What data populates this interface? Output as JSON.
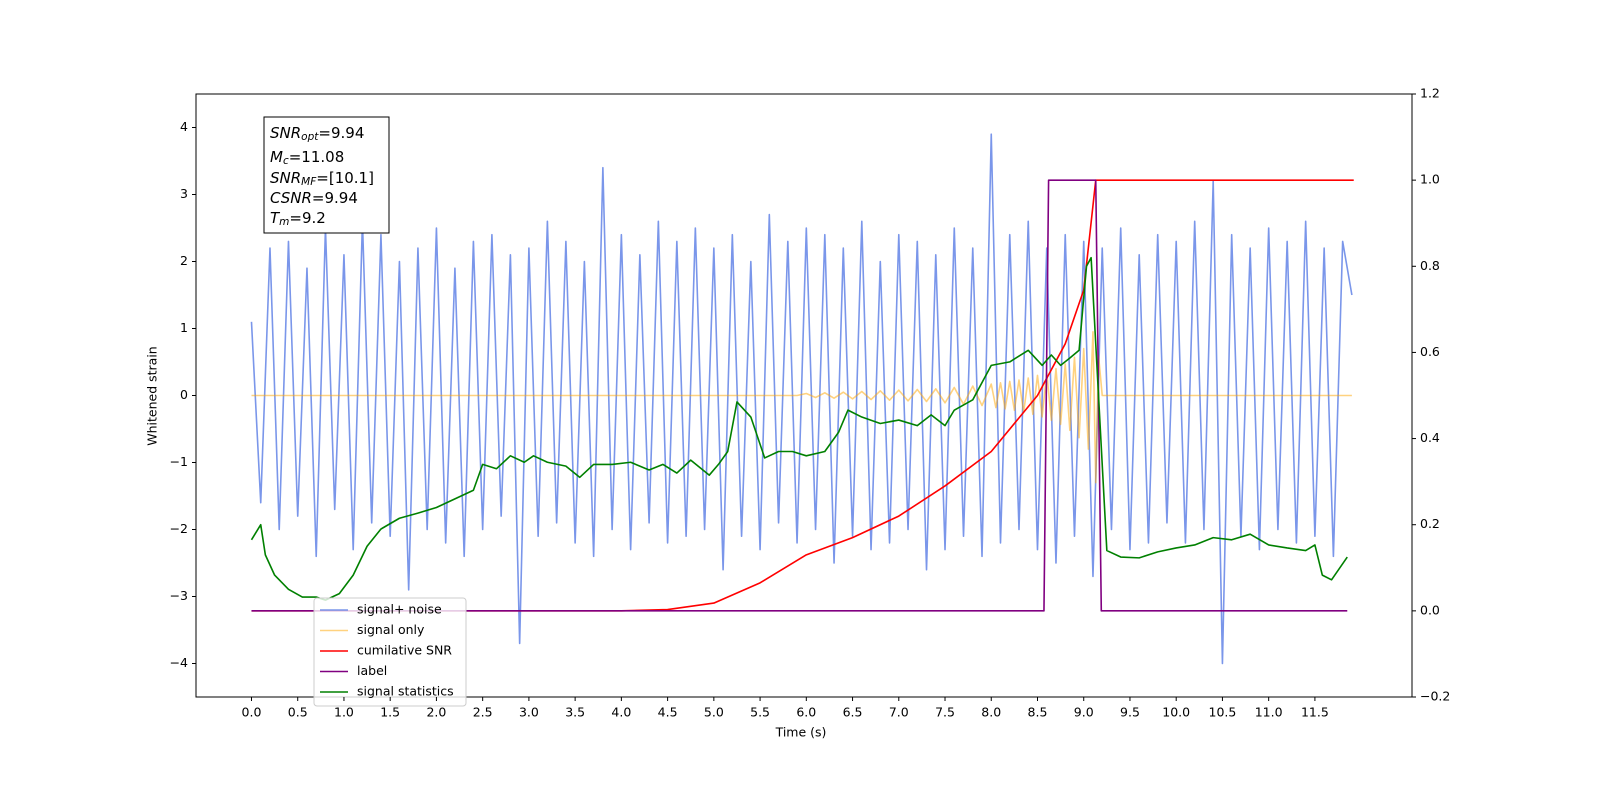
{
  "chart_data": {
    "type": "line",
    "xlabel": "Time (s)",
    "ylabel": "Whitened strain",
    "xlim": [
      -0.6,
      12.55
    ],
    "xticks": [
      {
        "value": 0,
        "label": "0.0"
      },
      0.5,
      {
        "value": 1,
        "label": "1.0"
      },
      1.5,
      {
        "value": 2,
        "label": "2.0"
      },
      2.5,
      {
        "value": 3,
        "label": "3.0"
      },
      3.5,
      {
        "value": 4,
        "label": "4.0"
      },
      4.5,
      {
        "value": 5,
        "label": "5.0"
      },
      5.5,
      {
        "value": 6,
        "label": "6.0"
      },
      6.5,
      {
        "value": 7,
        "label": "7.0"
      },
      7.5,
      {
        "value": 8,
        "label": "8.0"
      },
      8.5,
      {
        "value": 9,
        "label": "9.0"
      },
      9.5,
      {
        "value": 10,
        "label": "10.0"
      },
      10.5,
      {
        "value": 11,
        "label": "11.0"
      },
      11.5
    ],
    "ylim": [
      -4.5,
      4.5
    ],
    "yticks": [
      {
        "value": -4,
        "label": "−4"
      },
      {
        "value": -3,
        "label": "−3"
      },
      {
        "value": -2,
        "label": "−2"
      },
      {
        "value": -1,
        "label": "−1"
      },
      0,
      1,
      2,
      3,
      4
    ],
    "y2lim": [
      -0.2,
      1.2
    ],
    "y2ticks": [
      {
        "value": -0.2,
        "label": "−0.2"
      },
      {
        "value": 0,
        "label": "0.0"
      },
      0.2,
      0.4,
      0.6,
      0.8,
      {
        "value": 1,
        "label": "1.0"
      },
      1.2
    ],
    "legend": "lower left",
    "annotation": [
      {
        "main": "SNR",
        "sub": "opt",
        "rest": "=9.94"
      },
      {
        "main": "M",
        "sub": "c",
        "rest": "=11.08"
      },
      {
        "main": "SNR",
        "sub": "MF",
        "rest": "=[10.1]"
      },
      {
        "main": "CSNR",
        "sub": "",
        "rest": "=9.94"
      },
      {
        "main": "T",
        "sub": "m",
        "rest": "=9.2"
      }
    ],
    "series": [
      {
        "name": "signal+ noise",
        "color": "#4169e1",
        "alpha": 0.7,
        "x": [
          0,
          0.1,
          0.2,
          0.3,
          0.4,
          0.5,
          0.6,
          0.7,
          0.8,
          0.9,
          1,
          1.1,
          1.2,
          1.3,
          1.4,
          1.5,
          1.6,
          1.7,
          1.8,
          1.9,
          2,
          2.1,
          2.2,
          2.3,
          2.4,
          2.5,
          2.6,
          2.7,
          2.8,
          2.9,
          3,
          3.1,
          3.2,
          3.3,
          3.4,
          3.5,
          3.6,
          3.7,
          3.8,
          3.9,
          4,
          4.1,
          4.2,
          4.3,
          4.4,
          4.5,
          4.6,
          4.7,
          4.8,
          4.9,
          5,
          5.1,
          5.2,
          5.3,
          5.4,
          5.5,
          5.6,
          5.7,
          5.8,
          5.9,
          6,
          6.1,
          6.2,
          6.3,
          6.4,
          6.5,
          6.6,
          6.7,
          6.8,
          6.9,
          7,
          7.1,
          7.2,
          7.3,
          7.4,
          7.5,
          7.6,
          7.7,
          7.8,
          7.9,
          8,
          8.1,
          8.2,
          8.3,
          8.4,
          8.5,
          8.6,
          8.7,
          8.8,
          8.9,
          9,
          9.1,
          9.2,
          9.3,
          9.4,
          9.5,
          9.6,
          9.7,
          9.8,
          9.9,
          10,
          10.1,
          10.2,
          10.3,
          10.4,
          10.5,
          10.6,
          10.7,
          10.8,
          10.9,
          11,
          11.1,
          11.2,
          11.3,
          11.4,
          11.5,
          11.6,
          11.7,
          11.8,
          11.9
        ],
        "values": [
          1.1,
          -1.6,
          2.2,
          -2.0,
          2.3,
          -1.8,
          1.9,
          -2.4,
          2.5,
          -1.7,
          2.1,
          -2.3,
          2.6,
          -1.9,
          2.4,
          -2.1,
          2.0,
          -2.9,
          2.2,
          -2.0,
          2.5,
          -2.2,
          1.9,
          -2.4,
          2.3,
          -2.0,
          2.4,
          -1.8,
          2.1,
          -3.7,
          2.2,
          -2.1,
          2.6,
          -1.9,
          2.3,
          -2.2,
          2.0,
          -2.4,
          3.4,
          -2.0,
          2.4,
          -2.3,
          2.1,
          -1.9,
          2.6,
          -2.2,
          2.3,
          -2.1,
          2.5,
          -2.0,
          2.2,
          -2.6,
          2.4,
          -2.1,
          2.0,
          -2.3,
          2.7,
          -1.9,
          2.3,
          -2.2,
          2.5,
          -2.0,
          2.4,
          -2.5,
          2.2,
          -2.1,
          2.6,
          -2.3,
          2.0,
          -2.2,
          2.4,
          -2.0,
          2.3,
          -2.6,
          2.1,
          -2.3,
          2.5,
          -2.1,
          2.2,
          -2.4,
          3.9,
          -2.2,
          2.4,
          -2.0,
          2.6,
          -2.3,
          2.2,
          -2.5,
          2.4,
          -2.1,
          2.3,
          -2.7,
          2.2,
          -2.0,
          2.5,
          -2.3,
          2.1,
          -2.2,
          2.4,
          -1.9,
          2.3,
          -2.2,
          2.6,
          -2.0,
          3.2,
          -4.0,
          2.4,
          -2.1,
          2.2,
          -2.3,
          2.5,
          -2.0,
          2.3,
          -2.2,
          2.6,
          -2.1,
          2.2,
          -2.4,
          2.3,
          1.5
        ]
      },
      {
        "name": "signal only",
        "color": "#ffa500",
        "alpha": 0.5,
        "x": [
          0,
          5.9,
          6,
          6.1,
          6.2,
          6.3,
          6.4,
          6.5,
          6.6,
          6.7,
          6.8,
          6.9,
          7,
          7.1,
          7.2,
          7.3,
          7.4,
          7.5,
          7.6,
          7.7,
          7.8,
          7.9,
          8,
          8.05,
          8.1,
          8.15,
          8.2,
          8.25,
          8.3,
          8.35,
          8.4,
          8.45,
          8.5,
          8.55,
          8.6,
          8.65,
          8.7,
          8.75,
          8.8,
          8.85,
          8.9,
          8.95,
          9,
          9.05,
          9.1,
          9.13,
          9.16,
          9.2,
          11.9
        ],
        "values": [
          0,
          0,
          0.03,
          -0.03,
          0.04,
          -0.04,
          0.05,
          -0.05,
          0.06,
          -0.06,
          0.07,
          -0.07,
          0.08,
          -0.08,
          0.09,
          -0.09,
          0.1,
          -0.11,
          0.12,
          -0.13,
          0.14,
          -0.15,
          0.17,
          -0.18,
          0.19,
          -0.2,
          0.21,
          -0.22,
          0.23,
          -0.25,
          0.26,
          -0.28,
          0.3,
          -0.32,
          0.34,
          -0.37,
          0.4,
          -0.43,
          0.47,
          -0.52,
          0.57,
          -0.63,
          0.7,
          -0.8,
          0.95,
          -1.3,
          0.6,
          0,
          0
        ]
      },
      {
        "name": "cumilative SNR",
        "color": "#ff0000",
        "axis": "y2",
        "x": [
          0,
          4,
          4.5,
          5,
          5.5,
          6,
          6.5,
          7,
          7.5,
          8,
          8.5,
          8.8,
          9,
          9.13,
          11.92
        ],
        "values": [
          0,
          0,
          0.003,
          0.018,
          0.065,
          0.13,
          0.17,
          0.22,
          0.29,
          0.37,
          0.5,
          0.62,
          0.745,
          1,
          1
        ]
      },
      {
        "name": "label",
        "color": "#800080",
        "axis": "y2",
        "x": [
          0,
          8.57,
          8.62,
          9.13,
          9.19,
          11.85
        ],
        "values": [
          0,
          0,
          1,
          1,
          0,
          0
        ]
      },
      {
        "name": "signal statistics",
        "color": "#008000",
        "axis": "y2",
        "x": [
          0,
          0.1,
          0.15,
          0.25,
          0.4,
          0.55,
          0.7,
          0.8,
          0.95,
          1.1,
          1.25,
          1.4,
          1.6,
          1.8,
          2,
          2.2,
          2.4,
          2.5,
          2.65,
          2.8,
          2.95,
          3.05,
          3.2,
          3.4,
          3.55,
          3.7,
          3.9,
          4.1,
          4.3,
          4.45,
          4.6,
          4.75,
          4.95,
          5.05,
          5.15,
          5.25,
          5.4,
          5.55,
          5.7,
          5.85,
          6,
          6.2,
          6.35,
          6.45,
          6.6,
          6.8,
          7,
          7.2,
          7.35,
          7.5,
          7.6,
          7.8,
          8,
          8.2,
          8.4,
          8.55,
          8.65,
          8.75,
          8.85,
          8.95,
          9.03,
          9.08,
          9.25,
          9.4,
          9.6,
          9.8,
          10,
          10.2,
          10.4,
          10.6,
          10.8,
          11,
          11.2,
          11.4,
          11.5,
          11.58,
          11.68,
          11.85
        ],
        "values": [
          0.165,
          0.2,
          0.13,
          0.083,
          0.05,
          0.032,
          0.032,
          0.025,
          0.04,
          0.083,
          0.15,
          0.19,
          0.215,
          0.227,
          0.24,
          0.26,
          0.28,
          0.34,
          0.33,
          0.36,
          0.345,
          0.36,
          0.345,
          0.336,
          0.31,
          0.34,
          0.34,
          0.345,
          0.327,
          0.34,
          0.32,
          0.35,
          0.315,
          0.34,
          0.37,
          0.485,
          0.45,
          0.355,
          0.37,
          0.37,
          0.36,
          0.37,
          0.415,
          0.466,
          0.45,
          0.435,
          0.443,
          0.43,
          0.455,
          0.43,
          0.466,
          0.49,
          0.57,
          0.578,
          0.605,
          0.57,
          0.594,
          0.57,
          0.587,
          0.605,
          0.8,
          0.82,
          0.14,
          0.125,
          0.123,
          0.137,
          0.146,
          0.153,
          0.17,
          0.165,
          0.178,
          0.153,
          0.146,
          0.14,
          0.153,
          0.083,
          0.072,
          0.125
        ]
      }
    ]
  }
}
